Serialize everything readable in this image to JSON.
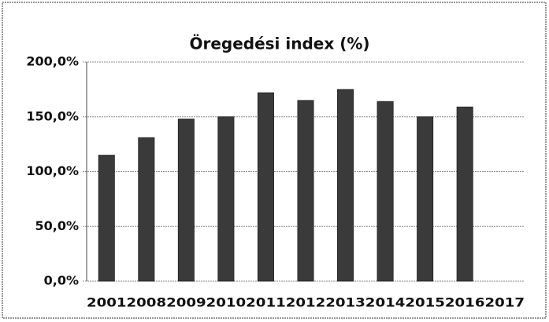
{
  "chart_data": {
    "type": "bar",
    "title": "Öregedési index (%)",
    "categories": [
      "2001",
      "2008",
      "2009",
      "2010",
      "2011",
      "2012",
      "2013",
      "2014",
      "2015",
      "2016",
      "2017"
    ],
    "values": [
      115,
      131,
      148,
      150,
      172,
      165,
      175,
      164,
      150,
      159,
      null
    ],
    "color": "#3a3a3a",
    "ylim": [
      0,
      200
    ],
    "yticks": [
      {
        "value": 0,
        "label": "0,0%"
      },
      {
        "value": 50,
        "label": "50,0%"
      },
      {
        "value": 100,
        "label": "100,0%"
      },
      {
        "value": 150,
        "label": "150,0%"
      },
      {
        "value": 200,
        "label": "200,0%"
      }
    ],
    "grid": true
  }
}
